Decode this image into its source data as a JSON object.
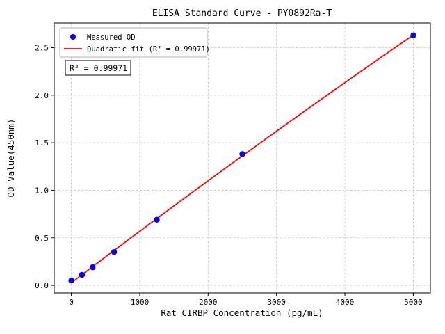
{
  "chart_data": {
    "type": "scatter",
    "title": "ELISA Standard Curve - PY0892Ra-T",
    "xlabel": "Rat CIRBP Concentration (pg/mL)",
    "ylabel": "OD Value(450nm)",
    "x": [
      0,
      156,
      312,
      625,
      1250,
      2500,
      5000
    ],
    "y": [
      0.05,
      0.11,
      0.19,
      0.35,
      0.69,
      1.38,
      2.63
    ],
    "xticks": [
      0,
      1000,
      2000,
      3000,
      4000,
      5000
    ],
    "yticks": [
      0.0,
      0.5,
      1.0,
      1.5,
      2.0,
      2.5
    ],
    "xlim": [
      -250,
      5250
    ],
    "ylim": [
      -0.08,
      2.76
    ],
    "grid": true,
    "fit": "quadratic",
    "annotation": "R² = 0.99971",
    "legend": {
      "position": "upper-left",
      "entries": [
        {
          "label": "Measured OD",
          "marker": "dot",
          "color": "#0000dd"
        },
        {
          "label": "Quadratic fit (R² = 0.99971)",
          "marker": "line",
          "color": "#ff0000"
        }
      ]
    },
    "colors": {
      "points": "#0000dd",
      "fit_line": "#ff0000",
      "grid": "#c3c3c3",
      "frame": "#000000"
    }
  }
}
